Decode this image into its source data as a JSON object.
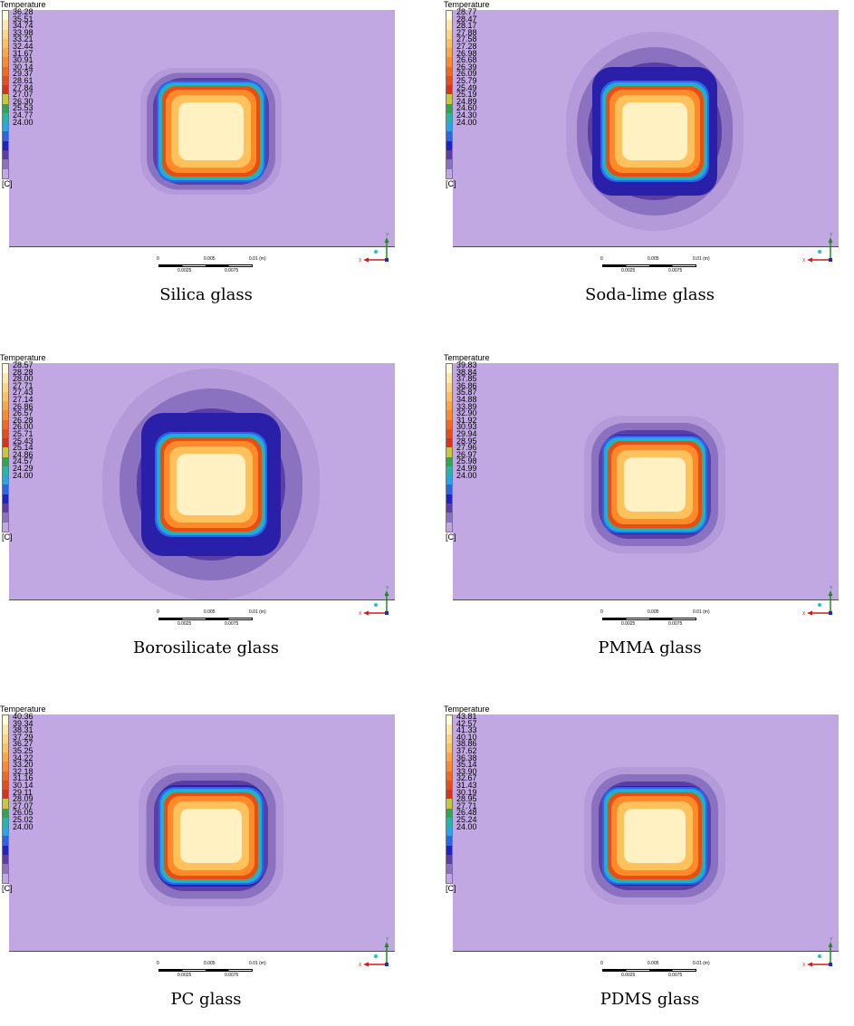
{
  "panels": [
    {
      "caption": "Silica glass",
      "legend_title": "Temperature",
      "unit": "[C]",
      "ticks": [
        "36.28",
        "35.51",
        "34.74",
        "33.98",
        "33.21",
        "32.44",
        "31.67",
        "30.91",
        "30.14",
        "29.37",
        "28.61",
        "27.84",
        "27.07",
        "26.30",
        "25.53",
        "24.77",
        "24.00"
      ],
      "scale": {
        "labels": [
          "0",
          "0.005",
          "0.01 (m)"
        ],
        "sub_labels": [
          "0.0025",
          "0.0075"
        ]
      },
      "axis": {
        "x": "X",
        "y": "Y"
      }
    },
    {
      "caption": "Soda-lime glass",
      "legend_title": "Temperature",
      "unit": "[C]",
      "ticks": [
        "28.77",
        "28.47",
        "28.17",
        "27.88",
        "27.58",
        "27.28",
        "26.98",
        "26.68",
        "26.39",
        "26.09",
        "25.79",
        "25.49",
        "25.19",
        "24.89",
        "24.60",
        "24.30",
        "24.00"
      ],
      "scale": {
        "labels": [
          "0",
          "0.005",
          "0.01 (m)"
        ],
        "sub_labels": [
          "0.0025",
          "0.0075"
        ]
      },
      "axis": {
        "x": "X",
        "y": "Y"
      }
    },
    {
      "caption": "Borosilicate glass",
      "legend_title": "Temperature",
      "unit": "[C]",
      "ticks": [
        "28.57",
        "28.28",
        "28.00",
        "27.71",
        "27.43",
        "27.14",
        "26.86",
        "26.57",
        "26.28",
        "26.00",
        "25.71",
        "25.43",
        "25.14",
        "24.86",
        "24.57",
        "24.29",
        "24.00"
      ],
      "scale": {
        "labels": [
          "0",
          "0.005",
          "0.01 (m)"
        ],
        "sub_labels": [
          "0.0025",
          "0.0075"
        ]
      },
      "axis": {
        "x": "X",
        "y": "Y"
      }
    },
    {
      "caption": "PMMA glass",
      "legend_title": "Temperature",
      "unit": "[C]",
      "ticks": [
        "39.83",
        "38.84",
        "37.85",
        "36.86",
        "35.87",
        "34.88",
        "33.89",
        "32.90",
        "31.92",
        "30.93",
        "29.94",
        "28.95",
        "27.96",
        "26.97",
        "25.98",
        "24.99",
        "24.00"
      ],
      "scale": {
        "labels": [
          "0",
          "0.005",
          "0.01 (m)"
        ],
        "sub_labels": [
          "0.0025",
          "0.0075"
        ]
      },
      "axis": {
        "x": "X",
        "y": "Y"
      }
    },
    {
      "caption": "PC glass",
      "legend_title": "Temperature",
      "unit": "[C]",
      "ticks": [
        "40.36",
        "39.34",
        "38.31",
        "37.29",
        "36.27",
        "35.25",
        "34.22",
        "33.20",
        "32.18",
        "31.16",
        "30.14",
        "29.11",
        "28.09",
        "27.07",
        "26.05",
        "25.02",
        "24.00"
      ],
      "scale": {
        "labels": [
          "0",
          "0.005",
          "0.01 (m)"
        ],
        "sub_labels": [
          "0.0025",
          "0.0075"
        ]
      },
      "axis": {
        "x": "X",
        "y": "Y"
      }
    },
    {
      "caption": "PDMS glass",
      "legend_title": "Temperature",
      "unit": "[C]",
      "ticks": [
        "43.81",
        "42.57",
        "41.33",
        "40.10",
        "38.86",
        "37.62",
        "36.38",
        "35.14",
        "33.90",
        "32.67",
        "31.43",
        "30.19",
        "28.95",
        "27.71",
        "26.48",
        "25.24",
        "24.00"
      ],
      "scale": {
        "labels": [
          "0",
          "0.005",
          "0.01 (m)"
        ],
        "sub_labels": [
          "0.0025",
          "0.0075"
        ]
      },
      "axis": {
        "x": "X",
        "y": "Y"
      }
    }
  ],
  "colors": {
    "background_field": "#c2a8e2",
    "legend_colors": [
      "#fffdd6",
      "#ffe9a8",
      "#ffd57d",
      "#ffc15c",
      "#ffa640",
      "#ff8a2a",
      "#f46a1c",
      "#e84d14",
      "#d8321a",
      "#c8c83a",
      "#2fa652",
      "#22b7a8",
      "#26a6e6",
      "#2a66e8",
      "#1e22c8",
      "#5b3ea6",
      "#8a72c0",
      "#c2a8e2"
    ]
  }
}
